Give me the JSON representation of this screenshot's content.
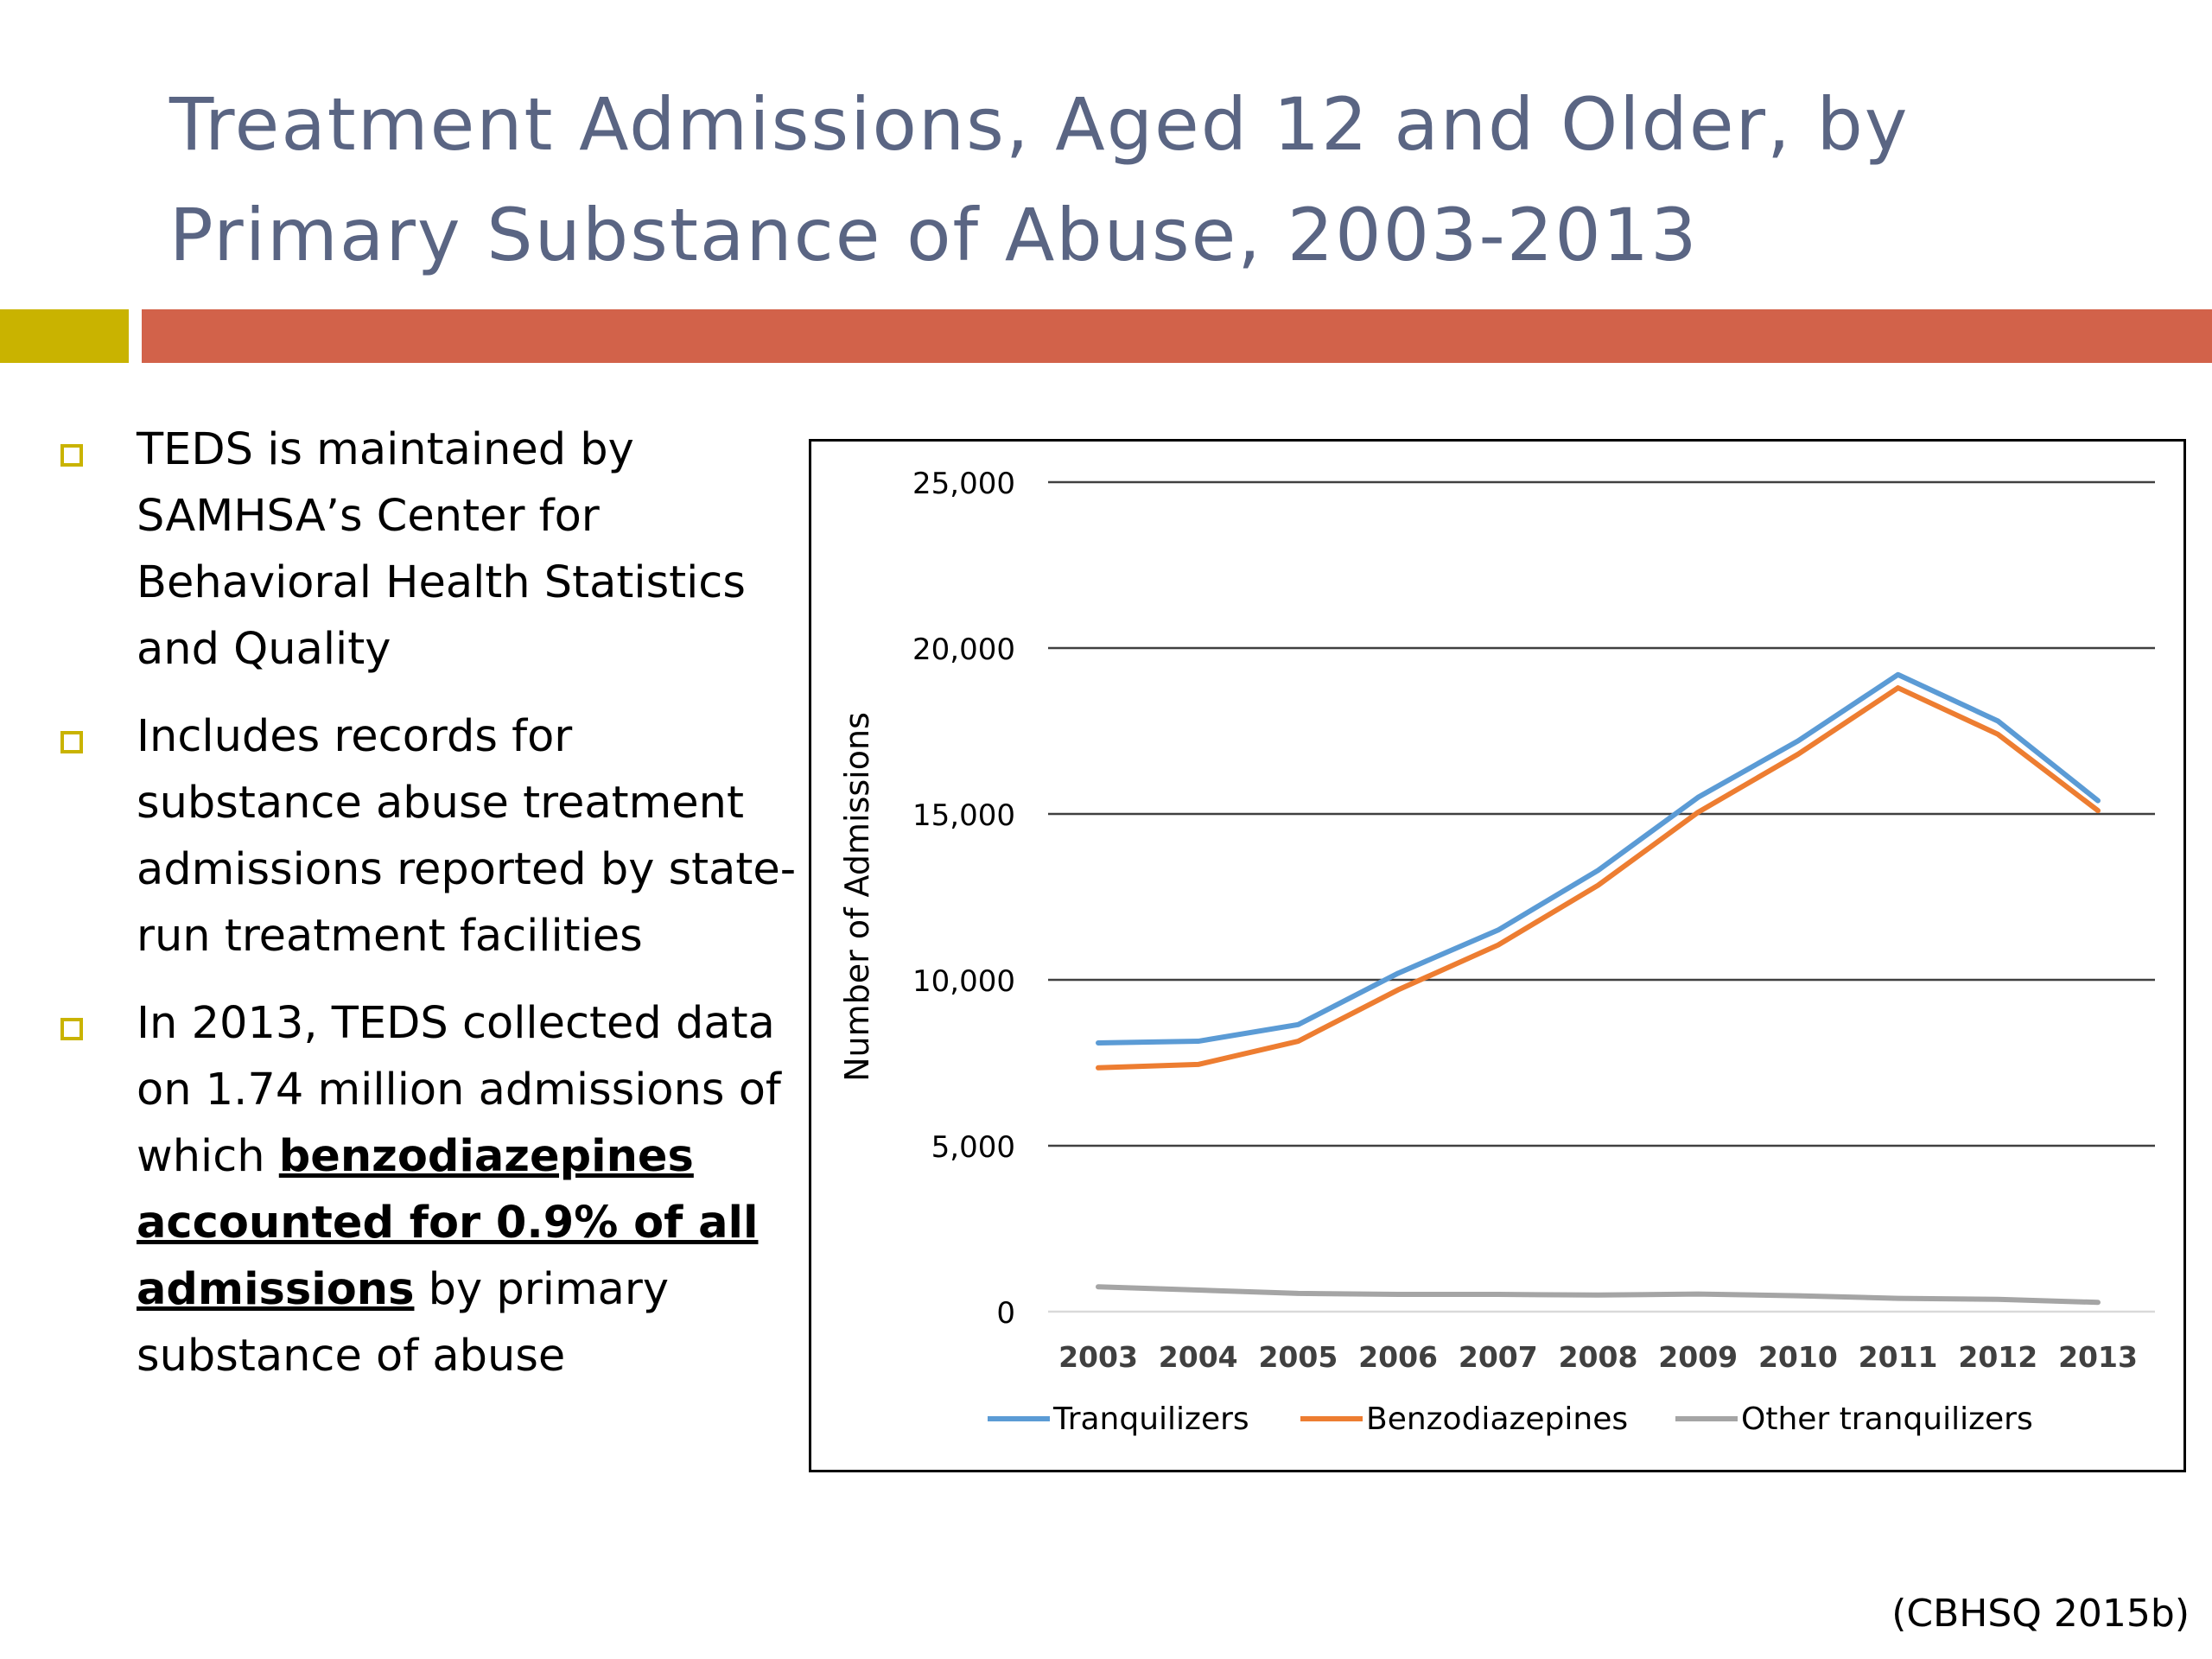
{
  "slide": {
    "title_line1": "Treatment Admissions, Aged 12 and Older, by",
    "title_line2": "Primary Substance of Abuse, 2003-2013",
    "citation": "(CBHSQ 2015b)"
  },
  "colors": {
    "title": "#5a6583",
    "accent_left": "#c9b300",
    "accent_right": "#d2624a",
    "bullet_marker": "#c9b300"
  },
  "bullets": [
    {
      "text": "TEDS is maintained by SAMHSA’s Center for Behavioral Health Statistics and Quality"
    },
    {
      "text": "Includes records for substance abuse treatment admissions reported by state-run treatment facilities"
    },
    {
      "pre": "In 2013, TEDS collected data on 1.74 million admissions of which ",
      "emph": "benzodiazepines accounted for 0.9% of all admissions",
      "post": " by primary substance of abuse"
    }
  ],
  "chart_data": {
    "type": "line",
    "title": "",
    "xlabel": "",
    "ylabel": "Number of Admissions",
    "categories": [
      "2003",
      "2004",
      "2005",
      "2006",
      "2007",
      "2008",
      "2009",
      "2010",
      "2011",
      "2012",
      "2013"
    ],
    "ylim": [
      0,
      25000
    ],
    "yticks": [
      0,
      5000,
      10000,
      15000,
      20000,
      25000
    ],
    "ytick_labels": [
      "0",
      "5,000",
      "10,000",
      "15,000",
      "20,000",
      "25,000"
    ],
    "grid": true,
    "legend_position": "bottom",
    "series": [
      {
        "name": "Tranquilizers",
        "color": "#5b9bd5",
        "values": [
          8100,
          8150,
          8650,
          10200,
          11500,
          13300,
          15500,
          17200,
          19200,
          17800,
          15400
        ]
      },
      {
        "name": "Benzodiazepines",
        "color": "#ed7d31",
        "values": [
          7350,
          7450,
          8150,
          9700,
          11050,
          12850,
          15050,
          16800,
          18800,
          17400,
          15100
        ]
      },
      {
        "name": "Other tranquilizers",
        "color": "#a5a5a5",
        "values": [
          750,
          650,
          550,
          520,
          520,
          500,
          530,
          480,
          400,
          370,
          280
        ]
      }
    ]
  }
}
